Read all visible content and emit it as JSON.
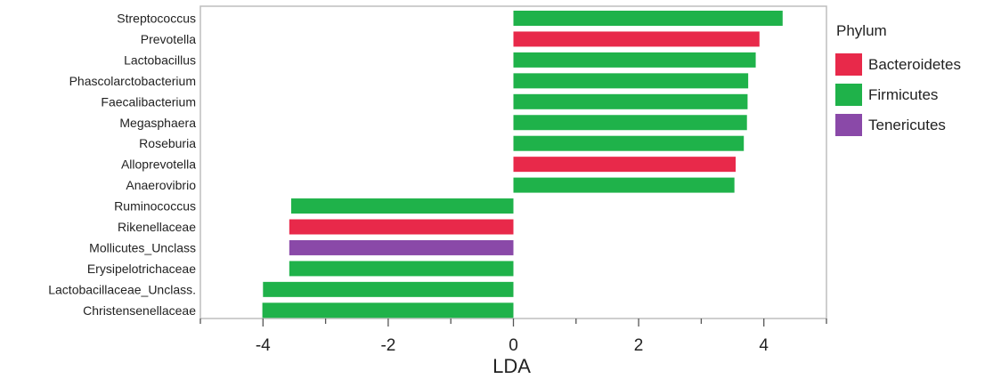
{
  "chart_data": {
    "type": "bar",
    "orientation": "horizontal",
    "xlabel": "LDA",
    "ylabel": "",
    "xlim": [
      -5,
      5
    ],
    "xticks": [
      -4,
      -2,
      0,
      2,
      4
    ],
    "grid": false,
    "legend": {
      "title": "Phylum",
      "placement": "right",
      "entries": [
        {
          "name": "Bacteroidetes",
          "color": "#e8294a"
        },
        {
          "name": "Firmicutes",
          "color": "#1fb24a"
        },
        {
          "name": "Tenericutes",
          "color": "#8a49a8"
        }
      ]
    },
    "categories": [
      "Streptococcus",
      "Prevotella",
      "Lactobacillus",
      "Phascolarctobacterium",
      "Faecalibacterium",
      "Megasphaera",
      "Roseburia",
      "Alloprevotella",
      "Anaerovibrio",
      "Ruminococcus",
      "Rikenellaceae",
      "Mollicutes_Unclass",
      "Erysipelotrichaceae",
      "Lactobacillaceae_Unclass.",
      "Christensenellaceae"
    ],
    "values": [
      4.3,
      3.93,
      3.87,
      3.75,
      3.74,
      3.73,
      3.68,
      3.55,
      3.53,
      -3.55,
      -3.58,
      -3.58,
      -3.58,
      -4.0,
      -4.01
    ],
    "phylum": [
      "Firmicutes",
      "Bacteroidetes",
      "Firmicutes",
      "Firmicutes",
      "Firmicutes",
      "Firmicutes",
      "Firmicutes",
      "Bacteroidetes",
      "Firmicutes",
      "Firmicutes",
      "Bacteroidetes",
      "Tenericutes",
      "Firmicutes",
      "Firmicutes",
      "Firmicutes"
    ]
  }
}
